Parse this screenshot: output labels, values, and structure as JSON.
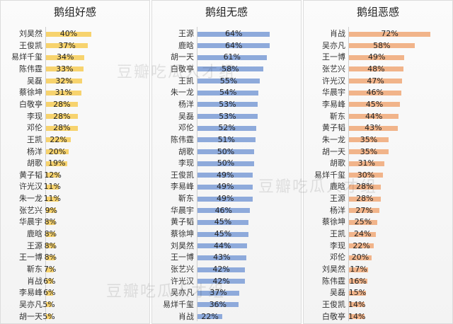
{
  "chart_data": [
    {
      "type": "bar",
      "orientation": "horizontal",
      "title": "鹅组好感",
      "color": "#f7d36e",
      "categories": [
        "刘昊然",
        "王俊凯",
        "易烊千玺",
        "陈伟霆",
        "吴磊",
        "蔡徐坤",
        "白敬亭",
        "李现",
        "邓伦",
        "王凯",
        "杨洋",
        "胡歌",
        "黄子韬",
        "许光汉",
        "朱一龙",
        "张艺兴",
        "华晨宇",
        "鹿晗",
        "王源",
        "王一博",
        "靳东",
        "肖战",
        "李易峰",
        "吴亦凡",
        "胡一天"
      ],
      "values": [
        40,
        37,
        34,
        33,
        32,
        31,
        28,
        28,
        28,
        22,
        20,
        19,
        12,
        11,
        11,
        9,
        8,
        8,
        8,
        8,
        7,
        6,
        6,
        5,
        5
      ],
      "value_labels": [
        "40%",
        "37%",
        "34%",
        "33%",
        "32%",
        "31%",
        "28%",
        "28%",
        "28%",
        "22%",
        "20%",
        "19%",
        "12%",
        "11%",
        "11%",
        "9%",
        "8%",
        "8%",
        "8%",
        "8%",
        "7%",
        "6%",
        "6%",
        "5%",
        "5%"
      ],
      "xlim": [
        0,
        80
      ]
    },
    {
      "type": "bar",
      "orientation": "horizontal",
      "title": "鹅组无感",
      "color": "#8eaadb",
      "categories": [
        "王源",
        "鹿晗",
        "胡一天",
        "白敬亭",
        "王凯",
        "朱一龙",
        "杨洋",
        "吴磊",
        "邓伦",
        "陈伟霆",
        "胡歌",
        "李现",
        "王俊凯",
        "李易峰",
        "靳东",
        "华晨宇",
        "黄子韬",
        "蔡徐坤",
        "刘昊然",
        "王一博",
        "张艺兴",
        "许光汉",
        "吴亦凡",
        "易烊千玺",
        "肖战"
      ],
      "values": [
        64,
        64,
        61,
        58,
        55,
        54,
        53,
        53,
        52,
        51,
        50,
        50,
        49,
        49,
        49,
        46,
        45,
        45,
        44,
        43,
        42,
        42,
        37,
        36,
        22
      ],
      "value_labels": [
        "64%",
        "64%",
        "61%",
        "58%",
        "55%",
        "54%",
        "53%",
        "53%",
        "52%",
        "51%",
        "50%",
        "50%",
        "49%",
        "49%",
        "49%",
        "46%",
        "45%",
        "45%",
        "44%",
        "43%",
        "42%",
        "42%",
        "37%",
        "36%",
        "22%"
      ],
      "xlim": [
        0,
        80
      ]
    },
    {
      "type": "bar",
      "orientation": "horizontal",
      "title": "鹅组恶感",
      "color": "#f1b48a",
      "categories": [
        "肖战",
        "吴亦凡",
        "王一博",
        "张艺兴",
        "许光汉",
        "华晨宇",
        "李易峰",
        "靳东",
        "黄子韬",
        "朱一龙",
        "胡一天",
        "胡歌",
        "易烊千玺",
        "鹿晗",
        "王源",
        "杨洋",
        "蔡徐坤",
        "王凯",
        "李现",
        "邓伦",
        "刘昊然",
        "陈伟霆",
        "吴磊",
        "王俊凯",
        "白敬亭"
      ],
      "values": [
        72,
        58,
        49,
        48,
        47,
        46,
        45,
        44,
        43,
        35,
        35,
        31,
        30,
        28,
        28,
        27,
        25,
        24,
        22,
        20,
        17,
        16,
        15,
        14,
        14
      ],
      "value_labels": [
        "72%",
        "58%",
        "49%",
        "48%",
        "47%",
        "46%",
        "45%",
        "44%",
        "43%",
        "35%",
        "35%",
        "31%",
        "30%",
        "28%",
        "28%",
        "27%",
        "25%",
        "24%",
        "22%",
        "20%",
        "17%",
        "16%",
        "15%",
        "14%",
        "14%"
      ],
      "xlim": [
        0,
        80
      ]
    }
  ]
}
